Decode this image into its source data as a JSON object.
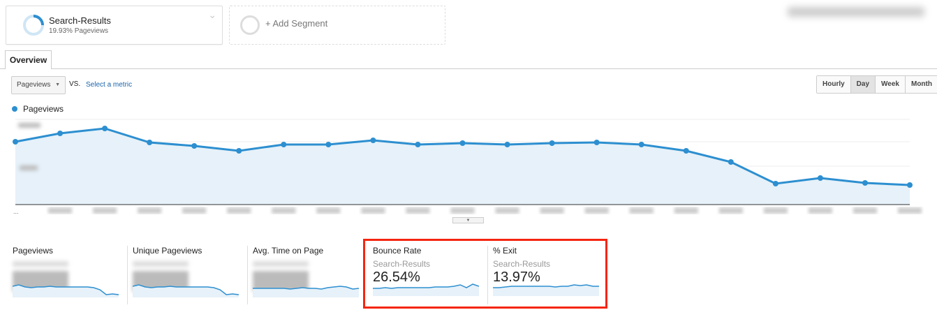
{
  "segments": {
    "active": {
      "name": "Search-Results",
      "subtitle": "19.93% Pageviews"
    },
    "add_label": "+ Add Segment"
  },
  "tabs": [
    {
      "label": "Overview",
      "active": true
    }
  ],
  "controls": {
    "metric": "Pageviews",
    "vs": "VS.",
    "select_metric": "Select a metric",
    "granularity": [
      "Hourly",
      "Day",
      "Week",
      "Month"
    ],
    "active_granularity": "Day"
  },
  "colors": {
    "series": "#2d8fd0",
    "fill": "#e6f1f9",
    "highlight": "#f5250f"
  },
  "chart_data": {
    "type": "area",
    "legend": "top-left",
    "series": [
      {
        "name": "Pageviews",
        "values": [
          90,
          102,
          109,
          89,
          84,
          77,
          86,
          86,
          92,
          86,
          88,
          86,
          88,
          89,
          86,
          77,
          61,
          30,
          38,
          31,
          28
        ]
      }
    ],
    "ylim": [
      0,
      123
    ],
    "grid": true,
    "note_axis_labels_blurred": true
  },
  "scorecards": [
    {
      "title": "Pageviews",
      "value_blurred": true
    },
    {
      "title": "Unique Pageviews",
      "value_blurred": true
    },
    {
      "title": "Avg. Time on Page",
      "value_blurred": true
    },
    {
      "title": "Bounce Rate",
      "segment": "Search-Results",
      "value": "26.54%"
    },
    {
      "title": "% Exit",
      "segment": "Search-Results",
      "value": "13.97%"
    }
  ],
  "sparklines": [
    [
      8,
      10,
      7,
      6,
      7,
      7,
      8,
      7,
      7,
      7,
      7,
      7,
      7,
      6,
      3,
      -4,
      -3,
      -4
    ],
    [
      8,
      10,
      7,
      6,
      7,
      7,
      8,
      7,
      7,
      7,
      7,
      7,
      7,
      6,
      3,
      -4,
      -3,
      -4
    ],
    [
      5,
      5,
      5,
      5,
      5,
      5,
      4,
      5,
      6,
      5,
      5,
      4,
      6,
      7,
      8,
      7,
      4,
      5
    ],
    [
      3,
      3,
      4,
      3,
      4,
      4,
      4,
      4,
      4,
      4,
      5,
      5,
      5,
      6,
      8,
      4,
      9,
      6
    ],
    [
      4,
      4,
      5,
      6,
      6,
      6,
      6,
      6,
      6,
      6,
      5,
      6,
      6,
      8,
      7,
      8,
      6,
      6
    ]
  ]
}
